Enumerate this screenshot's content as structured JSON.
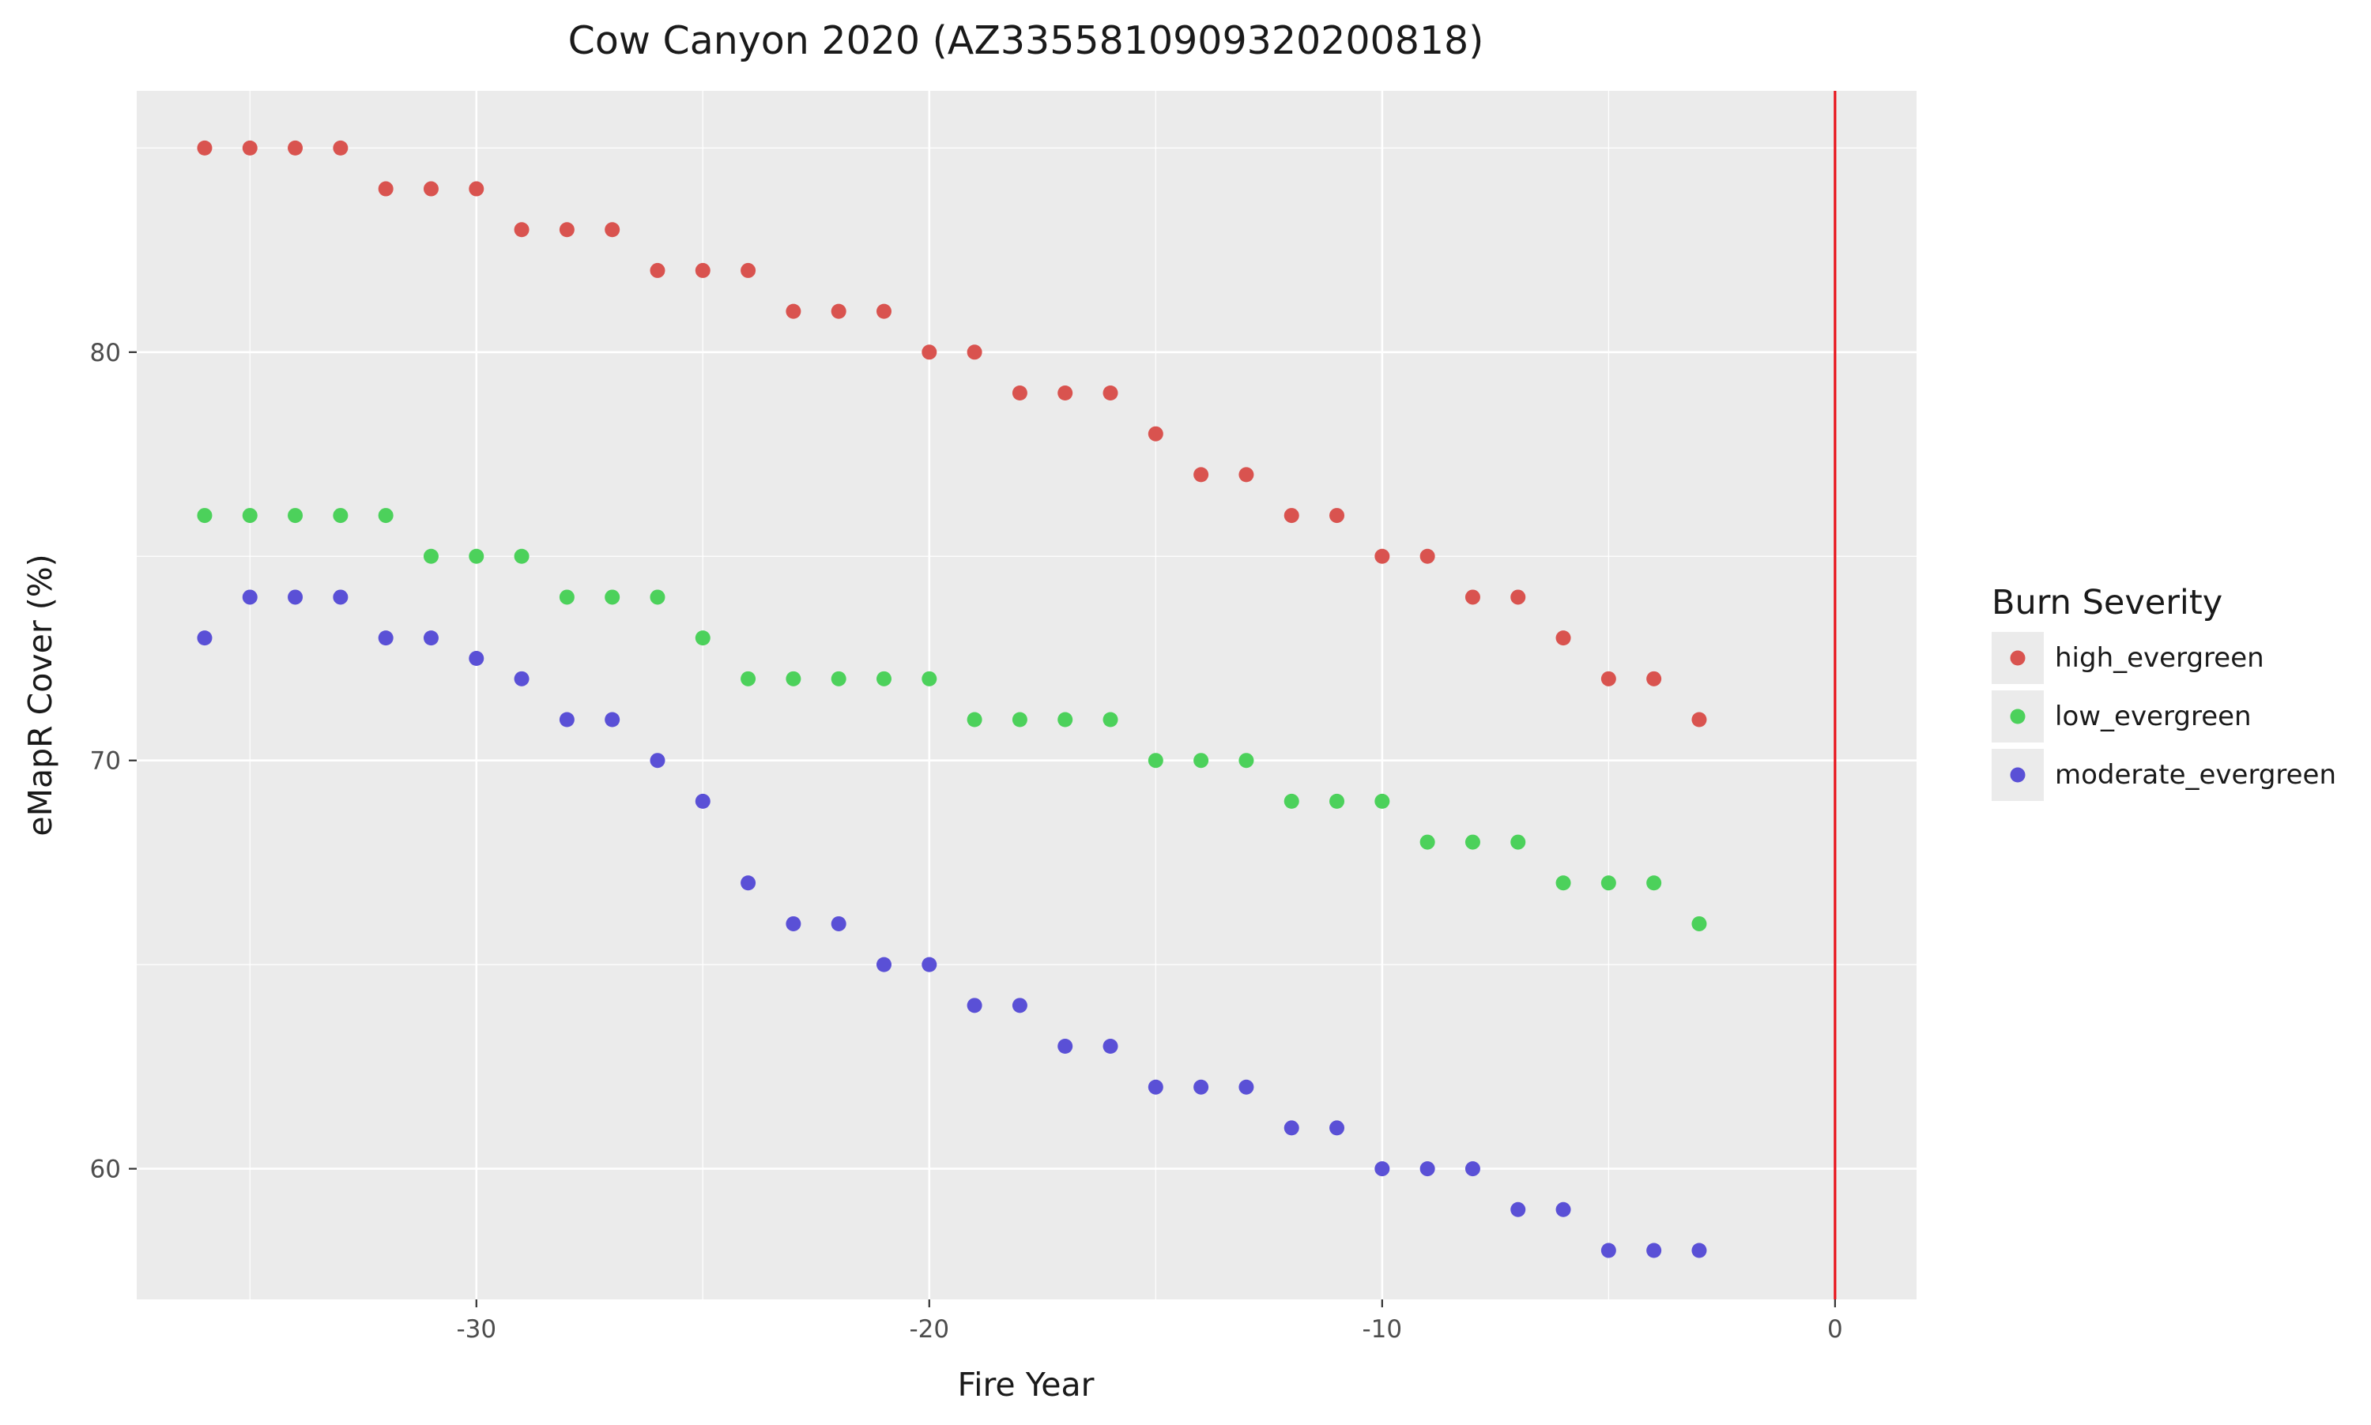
{
  "chart_data": {
    "type": "scatter",
    "title": "Cow Canyon 2020 (AZ3355810909320200818)",
    "xlabel": "Fire Year",
    "ylabel": "eMapR Cover (%)",
    "xlim": [
      -37.5,
      1.8
    ],
    "ylim": [
      56.8,
      86.4
    ],
    "x_ticks": [
      -30,
      -20,
      -10,
      0
    ],
    "y_ticks": [
      60,
      70,
      80
    ],
    "grid": true,
    "vline": {
      "x": 0,
      "color": "#e8141c"
    },
    "legend": {
      "title": "Burn Severity",
      "placement": "right"
    },
    "series": [
      {
        "name": "high_evergreen",
        "color": "#d9534f",
        "x": [
          -36,
          -35,
          -34,
          -33,
          -32,
          -31,
          -30,
          -29,
          -28,
          -27,
          -26,
          -25,
          -24,
          -23,
          -22,
          -21,
          -20,
          -19,
          -18,
          -17,
          -16,
          -15,
          -14,
          -13,
          -12,
          -11,
          -10,
          -9,
          -8,
          -7,
          -6,
          -5,
          -4,
          -3
        ],
        "y": [
          85,
          85,
          85,
          85,
          84,
          84,
          84,
          83,
          83,
          83,
          82,
          82,
          82,
          81,
          81,
          81,
          80,
          80,
          79,
          79,
          79,
          78,
          77,
          77,
          76,
          76,
          75,
          75,
          74,
          74,
          73,
          72,
          72,
          71
        ]
      },
      {
        "name": "low_evergreen",
        "color": "#4cd15b",
        "x": [
          -36,
          -35,
          -34,
          -33,
          -32,
          -31,
          -30,
          -29,
          -28,
          -27,
          -26,
          -25,
          -24,
          -23,
          -22,
          -21,
          -20,
          -19,
          -18,
          -17,
          -16,
          -15,
          -14,
          -13,
          -12,
          -11,
          -10,
          -9,
          -8,
          -7,
          -6,
          -5,
          -4,
          -3
        ],
        "y": [
          76,
          76,
          76,
          76,
          76,
          75,
          75,
          75,
          74,
          74,
          74,
          73,
          72,
          72,
          72,
          72,
          72,
          71,
          71,
          71,
          71,
          70,
          70,
          70,
          69,
          69,
          69,
          68,
          68,
          68,
          67,
          67,
          67,
          66
        ]
      },
      {
        "name": "moderate_evergreen",
        "color": "#5a50d6",
        "x": [
          -36,
          -35,
          -34,
          -33,
          -32,
          -31,
          -30,
          -29,
          -28,
          -27,
          -26,
          -25,
          -24,
          -23,
          -22,
          -21,
          -20,
          -19,
          -18,
          -17,
          -16,
          -15,
          -14,
          -13,
          -12,
          -11,
          -10,
          -9,
          -8,
          -7,
          -6,
          -5,
          -4,
          -3
        ],
        "y": [
          73,
          74,
          74,
          74,
          73,
          73,
          72.5,
          72,
          71,
          71,
          70,
          69,
          67,
          66,
          66,
          65,
          65,
          64,
          64,
          63,
          63,
          62,
          62,
          62,
          61,
          61,
          60,
          60,
          60,
          59,
          59,
          58,
          58,
          58
        ]
      }
    ]
  }
}
